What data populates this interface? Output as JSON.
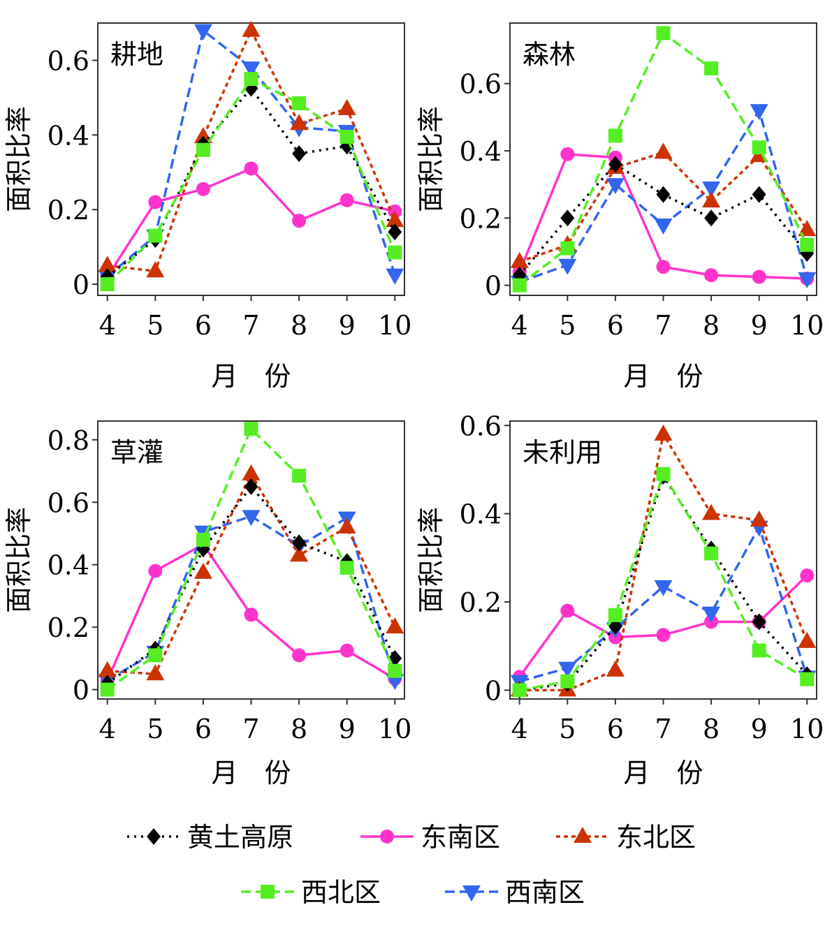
{
  "ylabel": "面积比率",
  "xlabel": "月　份",
  "chart_data": [
    {
      "type": "line",
      "title": "耕地",
      "x": [
        4,
        5,
        6,
        7,
        8,
        9,
        10
      ],
      "ylim": [
        -0.03,
        0.7
      ],
      "yticks": [
        "0",
        "0.2",
        "0.4",
        "0.6"
      ],
      "grid": false,
      "series": [
        {
          "name": "黄土高原",
          "values": [
            0.02,
            0.12,
            0.375,
            0.525,
            0.35,
            0.37,
            0.14
          ]
        },
        {
          "name": "东南区",
          "values": [
            0.02,
            0.22,
            0.255,
            0.31,
            0.17,
            0.225,
            0.195
          ]
        },
        {
          "name": "东北区",
          "values": [
            0.05,
            0.035,
            0.395,
            0.68,
            0.43,
            0.47,
            0.17
          ]
        },
        {
          "name": "西北区",
          "values": [
            0.0,
            0.13,
            0.36,
            0.55,
            0.485,
            0.395,
            0.085
          ]
        },
        {
          "name": "西南区",
          "values": [
            0.02,
            0.13,
            0.68,
            0.58,
            0.42,
            0.41,
            0.025
          ]
        }
      ]
    },
    {
      "type": "line",
      "title": "森林",
      "x": [
        4,
        5,
        6,
        7,
        8,
        9,
        10
      ],
      "ylim": [
        -0.03,
        0.78
      ],
      "yticks": [
        "0",
        "0.2",
        "0.4",
        "0.6"
      ],
      "grid": false,
      "series": [
        {
          "name": "黄土高原",
          "values": [
            0.03,
            0.2,
            0.36,
            0.27,
            0.2,
            0.27,
            0.095
          ]
        },
        {
          "name": "东南区",
          "values": [
            0.04,
            0.39,
            0.38,
            0.055,
            0.03,
            0.025,
            0.02
          ]
        },
        {
          "name": "东北区",
          "values": [
            0.07,
            0.12,
            0.35,
            0.395,
            0.25,
            0.385,
            0.165
          ]
        },
        {
          "name": "西北区",
          "values": [
            0.0,
            0.11,
            0.445,
            0.75,
            0.645,
            0.41,
            0.12
          ]
        },
        {
          "name": "西南区",
          "values": [
            0.01,
            0.06,
            0.3,
            0.18,
            0.29,
            0.52,
            0.02
          ]
        }
      ]
    },
    {
      "type": "line",
      "title": "草灌",
      "x": [
        4,
        5,
        6,
        7,
        8,
        9,
        10
      ],
      "ylim": [
        -0.03,
        0.86
      ],
      "yticks": [
        "0",
        "0.2",
        "0.4",
        "0.6",
        "0.8"
      ],
      "grid": false,
      "series": [
        {
          "name": "黄土高原",
          "values": [
            0.02,
            0.13,
            0.45,
            0.65,
            0.47,
            0.41,
            0.1
          ]
        },
        {
          "name": "东南区",
          "values": [
            0.03,
            0.38,
            0.465,
            0.24,
            0.11,
            0.125,
            0.035
          ]
        },
        {
          "name": "东北区",
          "values": [
            0.06,
            0.05,
            0.375,
            0.69,
            0.43,
            0.52,
            0.2
          ]
        },
        {
          "name": "西北区",
          "values": [
            0.0,
            0.11,
            0.48,
            0.835,
            0.685,
            0.39,
            0.06
          ]
        },
        {
          "name": "西南区",
          "values": [
            0.03,
            0.12,
            0.505,
            0.555,
            0.46,
            0.55,
            0.03
          ]
        }
      ]
    },
    {
      "type": "line",
      "title": "未利用",
      "x": [
        4,
        5,
        6,
        7,
        8,
        9,
        10
      ],
      "ylim": [
        -0.02,
        0.61
      ],
      "yticks": [
        "0",
        "0.2",
        "0.4",
        "0.6"
      ],
      "grid": false,
      "series": [
        {
          "name": "黄土高原",
          "values": [
            0.0,
            0.015,
            0.145,
            0.485,
            0.32,
            0.155,
            0.035
          ]
        },
        {
          "name": "东南区",
          "values": [
            0.03,
            0.18,
            0.12,
            0.125,
            0.155,
            0.155,
            0.26
          ]
        },
        {
          "name": "东北区",
          "values": [
            0.0,
            0.0,
            0.045,
            0.58,
            0.4,
            0.385,
            0.11
          ]
        },
        {
          "name": "西北区",
          "values": [
            0.0,
            0.02,
            0.17,
            0.49,
            0.31,
            0.09,
            0.025
          ]
        },
        {
          "name": "西南区",
          "values": [
            0.02,
            0.05,
            0.14,
            0.235,
            0.175,
            0.37,
            0.03
          ]
        }
      ]
    }
  ],
  "series_styles": [
    {
      "color": "#000000",
      "marker": "diamond",
      "dash": "3,7"
    },
    {
      "color": "#ff33cc",
      "marker": "circle",
      "dash": ""
    },
    {
      "color": "#cc3300",
      "marker": "triangle-up",
      "dash": "6,5"
    },
    {
      "color": "#55ee22",
      "marker": "square",
      "dash": "14,7"
    },
    {
      "color": "#3366ee",
      "marker": "triangle-down",
      "dash": "14,7"
    }
  ],
  "legend": {
    "placement": "bottom",
    "entries": [
      "黄土高原",
      "东南区",
      "东北区",
      "西北区",
      "西南区"
    ]
  }
}
